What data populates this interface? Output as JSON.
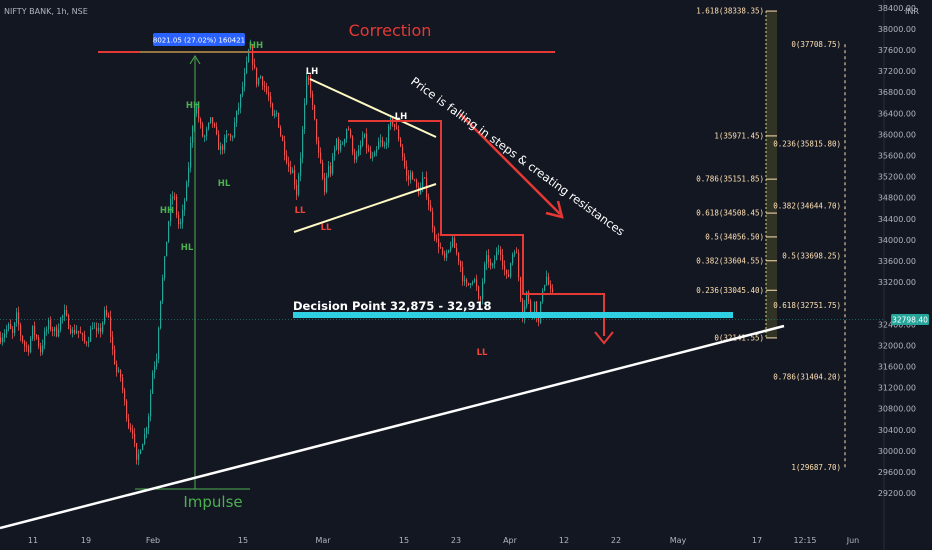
{
  "chart_data": {
    "type": "candlestick",
    "title": "NIFTY BANK, 1h, NSE",
    "currency": "INR",
    "x_ticks": [
      "11",
      "19",
      "Feb",
      "15",
      "Mar",
      "15",
      "23",
      "Apr",
      "12",
      "22",
      "May",
      "17",
      "12:15",
      "Jun"
    ],
    "y_ticks": [
      38400,
      38000,
      37600,
      37200,
      36800,
      36400,
      36000,
      35600,
      35200,
      34800,
      34400,
      34000,
      33600,
      33200,
      32400,
      32000,
      31600,
      31200,
      30800,
      30400,
      30000,
      29600,
      29200
    ],
    "ylim": [
      29000,
      38700
    ],
    "price_series": [
      [
        0,
        32150
      ],
      [
        4,
        32250
      ],
      [
        8,
        32350
      ],
      [
        12,
        32200
      ],
      [
        16,
        32550
      ],
      [
        20,
        32200
      ],
      [
        24,
        32000
      ],
      [
        28,
        31950
      ],
      [
        32,
        32300
      ],
      [
        36,
        32150
      ],
      [
        40,
        31900
      ],
      [
        44,
        32200
      ],
      [
        48,
        32400
      ],
      [
        52,
        32300
      ],
      [
        56,
        32250
      ],
      [
        60,
        32500
      ],
      [
        64,
        32600
      ],
      [
        68,
        32400
      ],
      [
        72,
        32250
      ],
      [
        76,
        32300
      ],
      [
        80,
        32200
      ],
      [
        84,
        32050
      ],
      [
        88,
        32150
      ],
      [
        92,
        32400
      ],
      [
        96,
        32200
      ],
      [
        100,
        32300
      ],
      [
        104,
        32600
      ],
      [
        108,
        32500
      ],
      [
        112,
        31900
      ],
      [
        116,
        31500
      ],
      [
        120,
        31400
      ],
      [
        124,
        30900
      ],
      [
        128,
        30500
      ],
      [
        132,
        30400
      ],
      [
        136,
        29750
      ],
      [
        140,
        30100
      ],
      [
        144,
        30300
      ],
      [
        148,
        30700
      ],
      [
        152,
        31500
      ],
      [
        156,
        31800
      ],
      [
        158,
        32400
      ],
      [
        160,
        32900
      ],
      [
        164,
        33600
      ],
      [
        167,
        34200
      ],
      [
        170,
        34700
      ],
      [
        173,
        34900
      ],
      [
        176,
        34500
      ],
      [
        179,
        34200
      ],
      [
        182,
        34500
      ],
      [
        186,
        35000
      ],
      [
        189,
        35600
      ],
      [
        192,
        36200
      ],
      [
        195,
        36600
      ],
      [
        199,
        36200
      ],
      [
        203,
        35900
      ],
      [
        207,
        36100
      ],
      [
        211,
        36300
      ],
      [
        215,
        36000
      ],
      [
        219,
        35700
      ],
      [
        223,
        35800
      ],
      [
        227,
        36000
      ],
      [
        231,
        35900
      ],
      [
        235,
        36300
      ],
      [
        239,
        36600
      ],
      [
        243,
        37000
      ],
      [
        246,
        37300
      ],
      [
        249,
        37700
      ],
      [
        252,
        37400
      ],
      [
        256,
        37000
      ],
      [
        260,
        37100
      ],
      [
        264,
        36900
      ],
      [
        268,
        36700
      ],
      [
        272,
        36300
      ],
      [
        276,
        36400
      ],
      [
        280,
        36000
      ],
      [
        284,
        35700
      ],
      [
        288,
        35400
      ],
      [
        292,
        35300
      ],
      [
        296,
        34900
      ],
      [
        300,
        35600
      ],
      [
        303,
        36300
      ],
      [
        306,
        37000
      ],
      [
        309,
        37000
      ],
      [
        312,
        36500
      ],
      [
        315,
        36100
      ],
      [
        318,
        35600
      ],
      [
        321,
        35300
      ],
      [
        324,
        34900
      ],
      [
        327,
        35400
      ],
      [
        330,
        35300
      ],
      [
        333,
        35600
      ],
      [
        336,
        35900
      ],
      [
        339,
        35700
      ],
      [
        343,
        35900
      ],
      [
        347,
        36200
      ],
      [
        351,
        35800
      ],
      [
        355,
        35500
      ],
      [
        359,
        35700
      ],
      [
        363,
        36000
      ],
      [
        367,
        35700
      ],
      [
        371,
        35500
      ],
      [
        375,
        35600
      ],
      [
        379,
        35900
      ],
      [
        383,
        35700
      ],
      [
        387,
        36000
      ],
      [
        391,
        36300
      ],
      [
        395,
        36100
      ],
      [
        399,
        35900
      ],
      [
        403,
        35500
      ],
      [
        407,
        35100
      ],
      [
        411,
        35300
      ],
      [
        415,
        35000
      ],
      [
        419,
        34900
      ],
      [
        423,
        35200
      ],
      [
        427,
        34800
      ],
      [
        431,
        34400
      ],
      [
        435,
        34000
      ],
      [
        439,
        33900
      ],
      [
        443,
        33600
      ],
      [
        447,
        33700
      ],
      [
        451,
        34000
      ],
      [
        455,
        33800
      ],
      [
        459,
        33600
      ],
      [
        463,
        33200
      ],
      [
        467,
        33100
      ],
      [
        471,
        33300
      ],
      [
        475,
        33200
      ],
      [
        479,
        32700
      ],
      [
        483,
        33400
      ],
      [
        487,
        33700
      ],
      [
        491,
        33400
      ],
      [
        495,
        33700
      ],
      [
        499,
        33900
      ],
      [
        503,
        33500
      ],
      [
        507,
        33200
      ],
      [
        511,
        33700
      ],
      [
        515,
        33900
      ],
      [
        519,
        33100
      ],
      [
        522,
        32600
      ],
      [
        526,
        33000
      ],
      [
        530,
        32600
      ],
      [
        534,
        32800
      ],
      [
        538,
        32400
      ],
      [
        542,
        33100
      ],
      [
        546,
        33300
      ],
      [
        550,
        33000
      ],
      [
        553,
        32900
      ]
    ],
    "pivot_labels": [
      {
        "label": "HH",
        "color": "#4caf50"
      },
      {
        "label": "HH",
        "color": "#4caf50"
      },
      {
        "label": "HL",
        "color": "#4caf50"
      },
      {
        "label": "HH",
        "color": "#4caf50"
      },
      {
        "label": "HL",
        "color": "#4caf50"
      },
      {
        "label": "LH",
        "color": "#ffffff"
      },
      {
        "label": "LL",
        "color": "#f44336"
      },
      {
        "label": "LL",
        "color": "#f44336"
      },
      {
        "label": "LH",
        "color": "#ffffff"
      },
      {
        "label": "LL",
        "color": "#f44336"
      }
    ],
    "measurement_label": "8021.05 (27.02%) 160421",
    "annotations": {
      "correction": "Correction",
      "impulse": "Impulse",
      "decision": "Decision Point 32,875 - 32,918",
      "falling": "Price is falling in steps & creating resistances"
    },
    "fib_levels_1": [
      {
        "label": "1.618(38338.35)",
        "value": 38338.35
      },
      {
        "label": "1(35971.45)",
        "value": 35971.45
      },
      {
        "label": "0.786(35151.85)",
        "value": 35151.85
      },
      {
        "label": "0.618(34508.45)",
        "value": 34508.45
      },
      {
        "label": "0.5(34056.50)",
        "value": 34056.5
      },
      {
        "label": "0.382(33604.55)",
        "value": 33604.55
      },
      {
        "label": "0.236(33045.40)",
        "value": 33045.4
      },
      {
        "label": "0(32141.55)",
        "value": 32141.55
      }
    ],
    "fib_levels_2": [
      {
        "label": "0(37708.75)",
        "value": 37708.75
      },
      {
        "label": "0.236(35815.80)",
        "value": 35815.8
      },
      {
        "label": "0.382(34644.70)",
        "value": 34644.7
      },
      {
        "label": "0.5(33698.25)",
        "value": 33698.25
      },
      {
        "label": "0.618(32751.75)",
        "value": 32751.75
      },
      {
        "label": "0.786(31404.20)",
        "value": 31404.2
      },
      {
        "label": "1(29687.70)",
        "value": 29687.7
      }
    ],
    "current_price": "32798.40",
    "correction_level": 37708.75,
    "impulse_base": 29687.7,
    "decision_level": 32897,
    "colors": {
      "background": "#131722",
      "up": "#26a69a",
      "down": "#ef5350",
      "red_line": "#e53935",
      "cyan": "#2fd0e2",
      "impulse": "#4caf50",
      "badge": "#2962ff",
      "trend": "#ffffff",
      "wedge": "#fff9c4",
      "fib": "#ffe0b2"
    }
  }
}
